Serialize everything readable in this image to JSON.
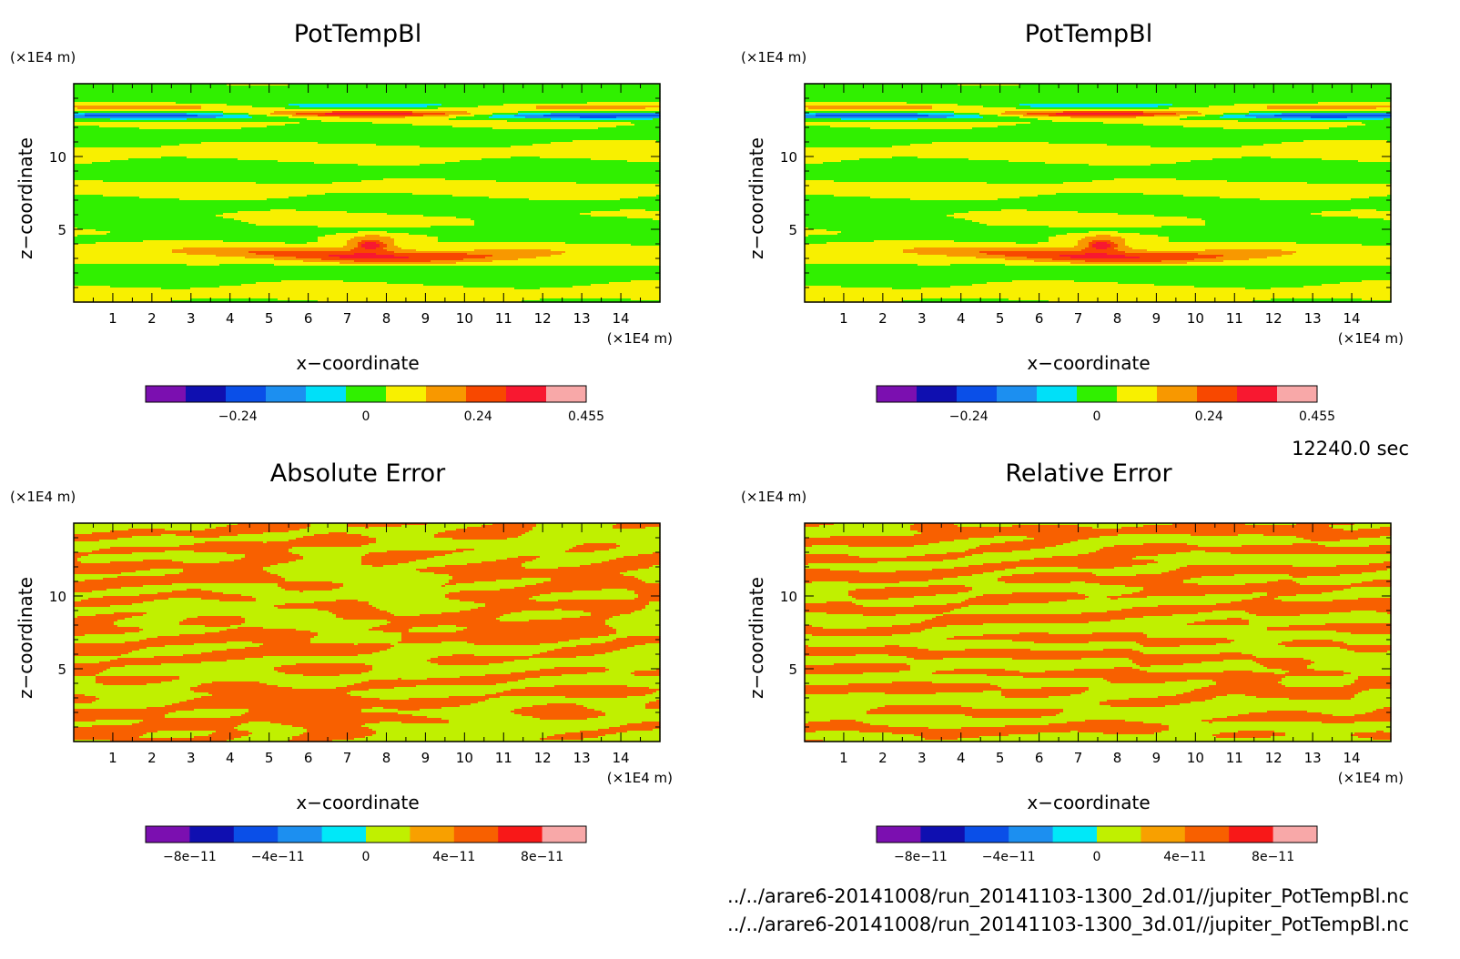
{
  "figure": {
    "time_label": "12240.0 sec",
    "file_lines": [
      "../../arare6-20141008/run_20141103-1300_2d.01//jupiter_PotTempBl.nc",
      "../../arare6-20141008/run_20141103-1300_3d.01//jupiter_PotTempBl.nc"
    ]
  },
  "colors": {
    "potemp_levels": [
      "#7b0fb0",
      "#0f0fb0",
      "#0a4fe8",
      "#1c8ff0",
      "#00e0f8",
      "#30f000",
      "#f8f000",
      "#f89800",
      "#f84800",
      "#f81830",
      "#f8a8a8"
    ],
    "error_levels": [
      "#7b0fb0",
      "#0f0fb0",
      "#0a4fe8",
      "#1c8ff0",
      "#00e8f8",
      "#c0f000",
      "#f8a000",
      "#f86000",
      "#f81818",
      "#f8a8a8"
    ]
  },
  "chart_data": [
    {
      "type": "heatmap",
      "title": "PotTempBl",
      "xlabel": "x−coordinate",
      "ylabel": "z−coordinate",
      "x_unit": "(×1E4 m)",
      "y_unit": "(×1E4 m)",
      "xlim": [
        0,
        15
      ],
      "ylim": [
        0,
        15
      ],
      "x_ticks": [
        1,
        2,
        3,
        4,
        5,
        6,
        7,
        8,
        9,
        10,
        11,
        12,
        13,
        14
      ],
      "y_ticks": [
        5,
        10
      ],
      "field": "potemp",
      "colorbar": {
        "levels": [
          -0.5,
          -0.4,
          -0.3,
          -0.2,
          -0.1,
          0,
          0.1,
          0.2,
          0.3,
          0.4,
          0.455
        ],
        "tick_values": [
          -0.24,
          0,
          0.24,
          0.455
        ],
        "tick_labels": [
          "−0.24",
          "0",
          "0.24",
          "0.455"
        ]
      }
    },
    {
      "type": "heatmap",
      "title": "PotTempBl",
      "xlabel": "x−coordinate",
      "ylabel": "z−coordinate",
      "x_unit": "(×1E4 m)",
      "y_unit": "(×1E4 m)",
      "xlim": [
        0,
        15
      ],
      "ylim": [
        0,
        15
      ],
      "x_ticks": [
        1,
        2,
        3,
        4,
        5,
        6,
        7,
        8,
        9,
        10,
        11,
        12,
        13,
        14
      ],
      "y_ticks": [
        5,
        10
      ],
      "field": "potemp",
      "colorbar": {
        "levels": [
          -0.5,
          -0.4,
          -0.3,
          -0.2,
          -0.1,
          0,
          0.1,
          0.2,
          0.3,
          0.4,
          0.455
        ],
        "tick_values": [
          -0.24,
          0,
          0.24,
          0.455
        ],
        "tick_labels": [
          "−0.24",
          "0",
          "0.24",
          "0.455"
        ]
      }
    },
    {
      "type": "heatmap",
      "title": "Absolute Error",
      "xlabel": "x−coordinate",
      "ylabel": "z−coordinate",
      "x_unit": "(×1E4 m)",
      "y_unit": "(×1E4 m)",
      "xlim": [
        0,
        15
      ],
      "ylim": [
        0,
        15
      ],
      "x_ticks": [
        1,
        2,
        3,
        4,
        5,
        6,
        7,
        8,
        9,
        10,
        11,
        12,
        13,
        14
      ],
      "y_ticks": [
        5,
        10
      ],
      "field": "noise",
      "seed": 11,
      "colorbar": {
        "levels": [
          -1e-10,
          -8e-11,
          -6e-11,
          -4e-11,
          -2e-11,
          0,
          2e-11,
          4e-11,
          6e-11,
          8e-11,
          1e-10
        ],
        "tick_values": [
          -8e-11,
          -4e-11,
          0,
          4e-11,
          8e-11
        ],
        "tick_labels": [
          "−8e−11",
          "−4e−11",
          "0",
          "4e−11",
          "8e−11"
        ]
      }
    },
    {
      "type": "heatmap",
      "title": "Relative Error",
      "xlabel": "x−coordinate",
      "ylabel": "z−coordinate",
      "x_unit": "(×1E4 m)",
      "y_unit": "(×1E4 m)",
      "xlim": [
        0,
        15
      ],
      "ylim": [
        0,
        15
      ],
      "x_ticks": [
        1,
        2,
        3,
        4,
        5,
        6,
        7,
        8,
        9,
        10,
        11,
        12,
        13,
        14
      ],
      "y_ticks": [
        5,
        10
      ],
      "field": "noise",
      "seed": 29,
      "colorbar": {
        "levels": [
          -1e-10,
          -8e-11,
          -6e-11,
          -4e-11,
          -2e-11,
          0,
          2e-11,
          4e-11,
          6e-11,
          8e-11,
          1e-10
        ],
        "tick_values": [
          -8e-11,
          -4e-11,
          0,
          4e-11,
          8e-11
        ],
        "tick_labels": [
          "−8e−11",
          "−4e−11",
          "0",
          "4e−11",
          "8e−11"
        ]
      }
    }
  ]
}
